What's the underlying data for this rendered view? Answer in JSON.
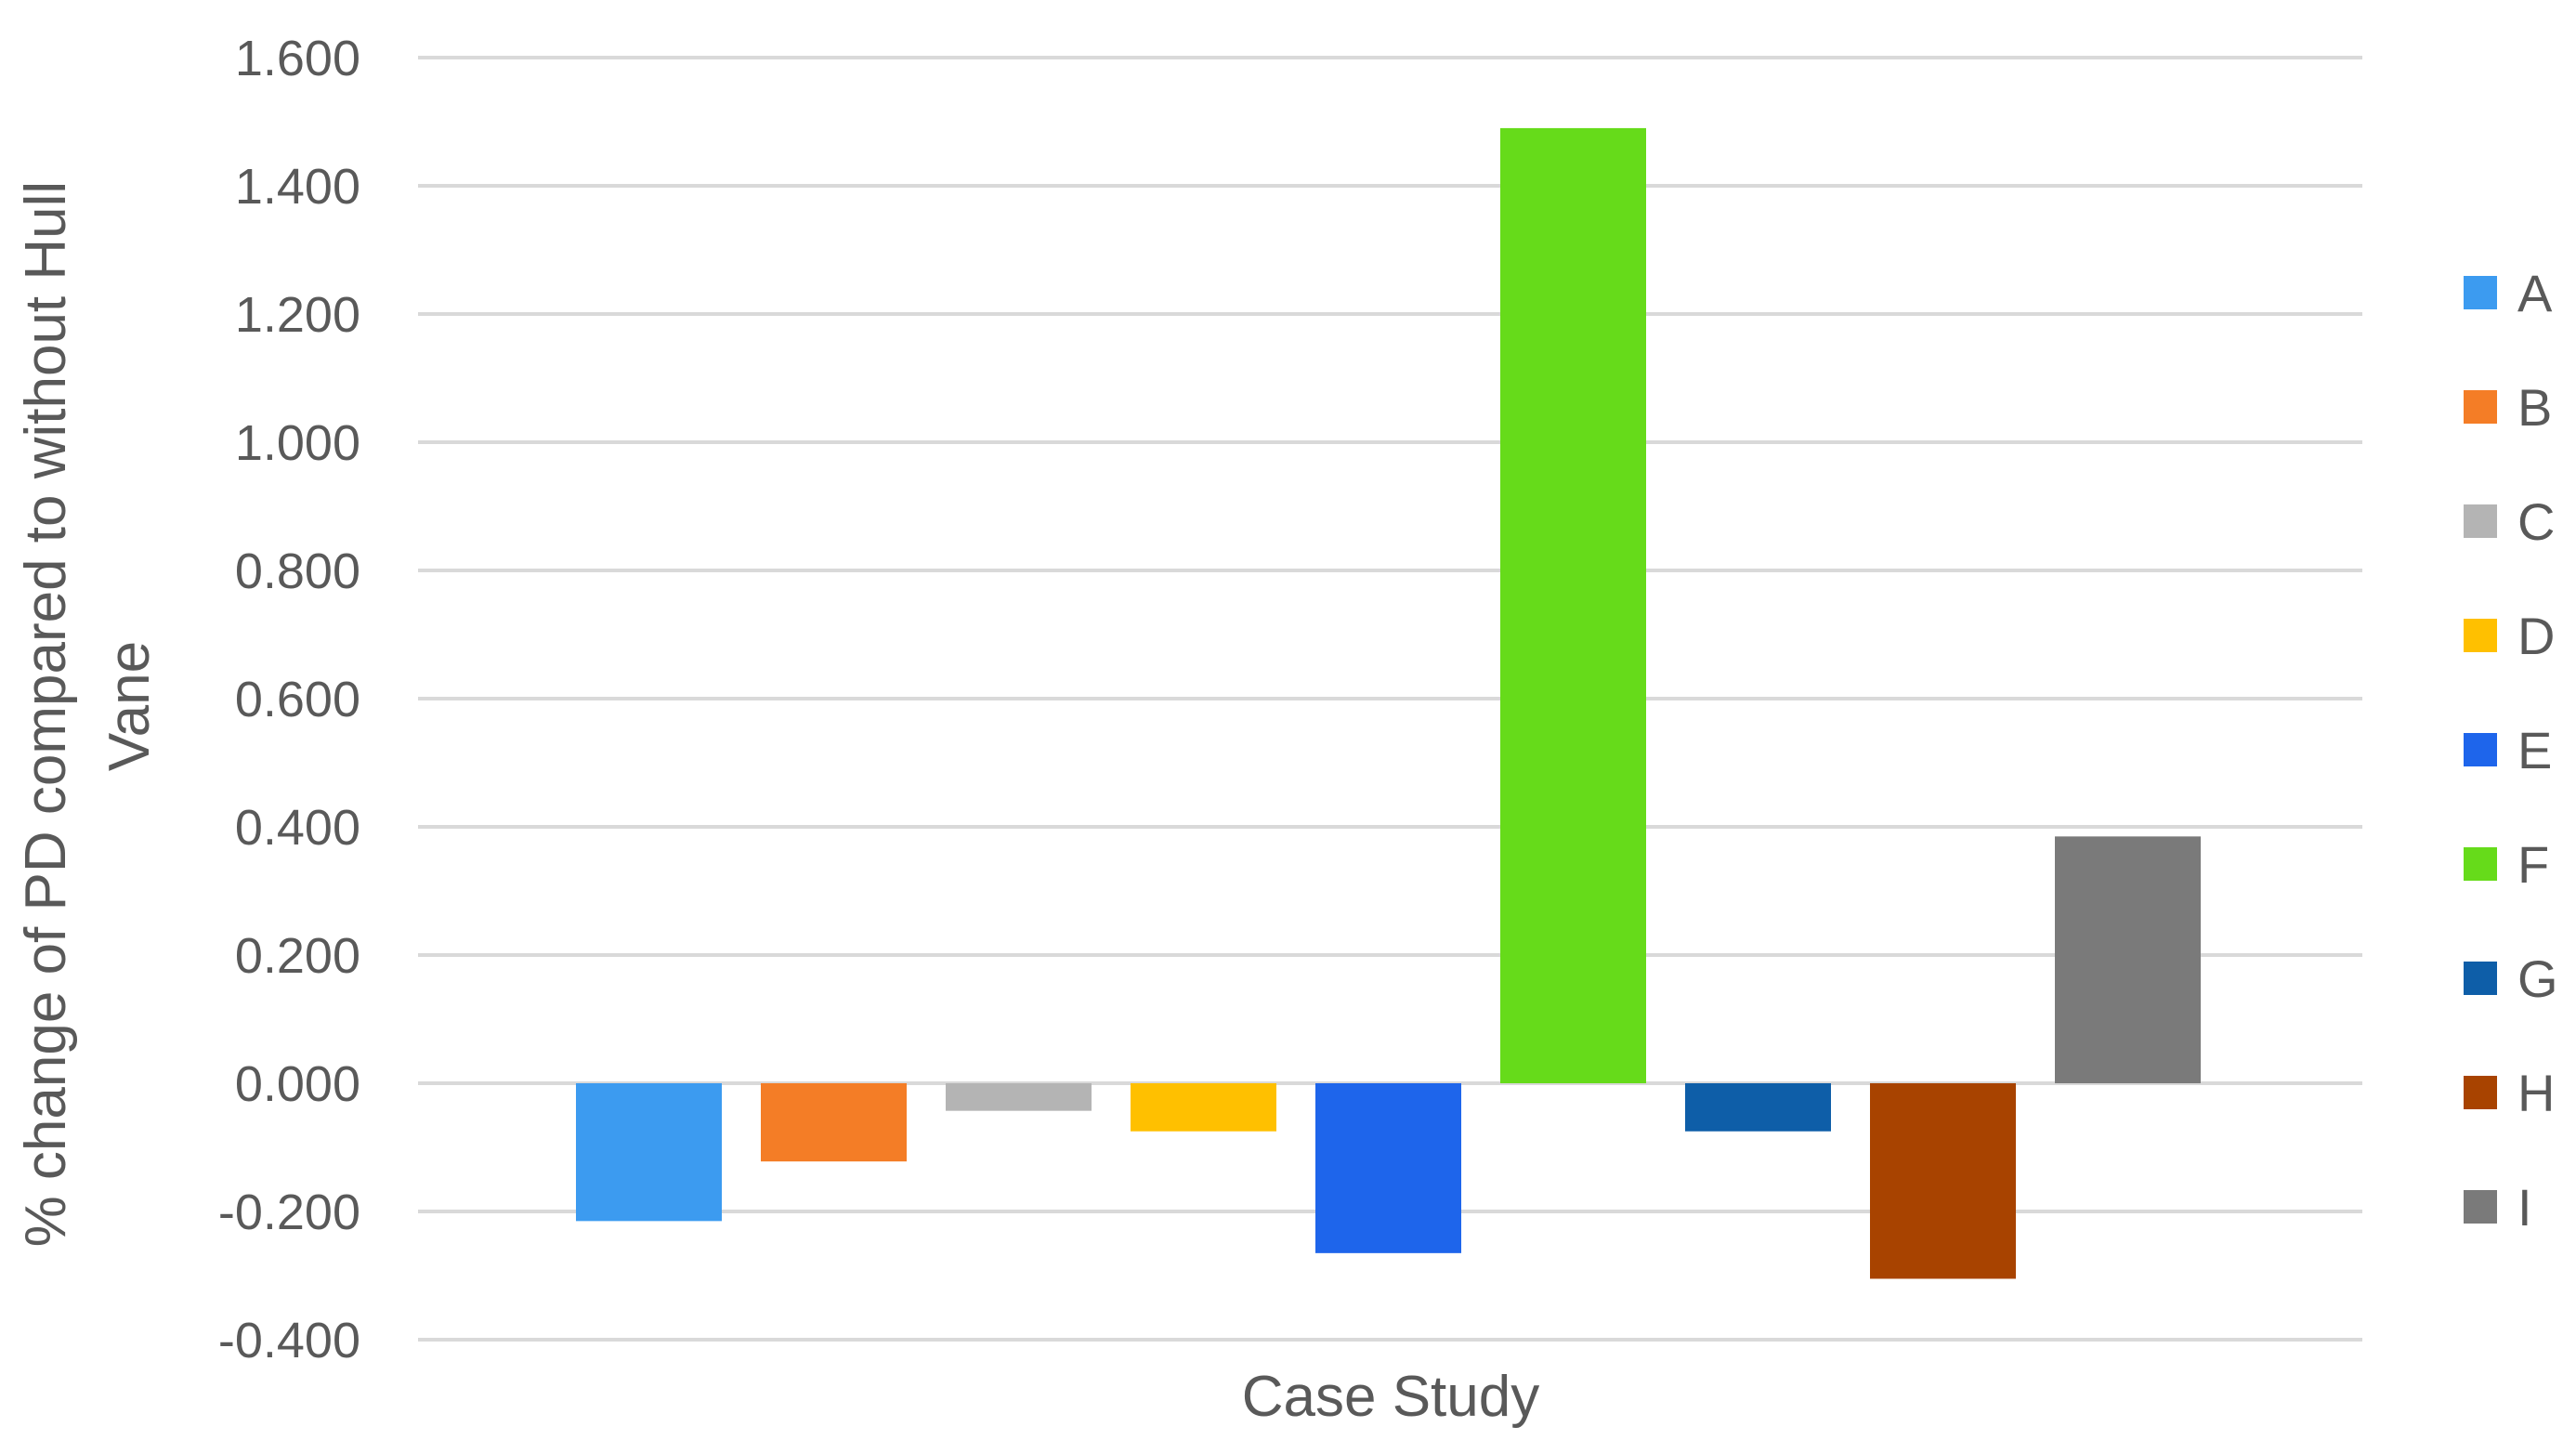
{
  "chart_data": {
    "type": "bar",
    "title": "",
    "xlabel": "Case Study",
    "ylabel_lines": [
      "% change of PD compared to without Hull",
      "Vane"
    ],
    "ylim": [
      -0.4,
      1.6
    ],
    "yticks": [
      -0.4,
      -0.2,
      0.0,
      0.2,
      0.4,
      0.6,
      0.8,
      1.0,
      1.2,
      1.4,
      1.6
    ],
    "ytick_labels": [
      "-0.400",
      "-0.200",
      "0.000",
      "0.200",
      "0.400",
      "0.600",
      "0.800",
      "1.000",
      "1.200",
      "1.400",
      "1.600"
    ],
    "grid": true,
    "legend_position": "right",
    "series": [
      {
        "name": "A",
        "value": -0.215,
        "color": "#3C9BF0"
      },
      {
        "name": "B",
        "value": -0.122,
        "color": "#F47D26"
      },
      {
        "name": "C",
        "value": -0.043,
        "color": "#B4B4B4"
      },
      {
        "name": "D",
        "value": -0.075,
        "color": "#FFC000"
      },
      {
        "name": "E",
        "value": -0.265,
        "color": "#1E65EB"
      },
      {
        "name": "F",
        "value": 1.49,
        "color": "#66DB1A"
      },
      {
        "name": "G",
        "value": -0.075,
        "color": "#0E5EA8"
      },
      {
        "name": "H",
        "value": -0.305,
        "color": "#A84300"
      },
      {
        "name": "I",
        "value": 0.385,
        "color": "#7A7A7A"
      }
    ]
  }
}
